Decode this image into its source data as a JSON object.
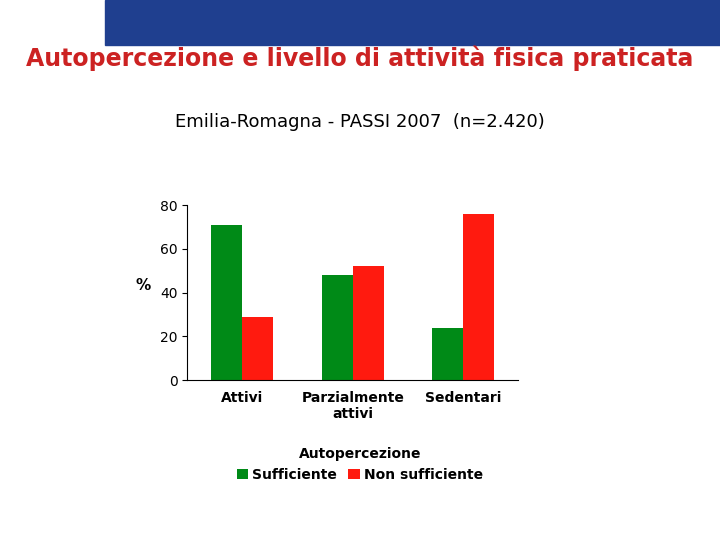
{
  "chart_data": {
    "type": "bar",
    "title": "Autopercezione e livello di attività fisica praticata",
    "subtitle": "Emilia-Romagna - PASSI 2007  (n=2.420)",
    "y_label": "%",
    "categories": [
      "Attivi",
      "Parzialmente attivi",
      "Sedentari"
    ],
    "series": [
      {
        "name": "Sufficiente",
        "color": "#008a17",
        "values": [
          71,
          48,
          24
        ]
      },
      {
        "name": "Non sufficiente",
        "color": "#ff1a0f",
        "values": [
          29,
          52,
          76
        ]
      }
    ],
    "ylim": [
      0,
      80
    ],
    "yticks": [
      0,
      20,
      40,
      60,
      80
    ],
    "grid": false,
    "legend": "lower center",
    "legend_title": "Autopercezione"
  }
}
